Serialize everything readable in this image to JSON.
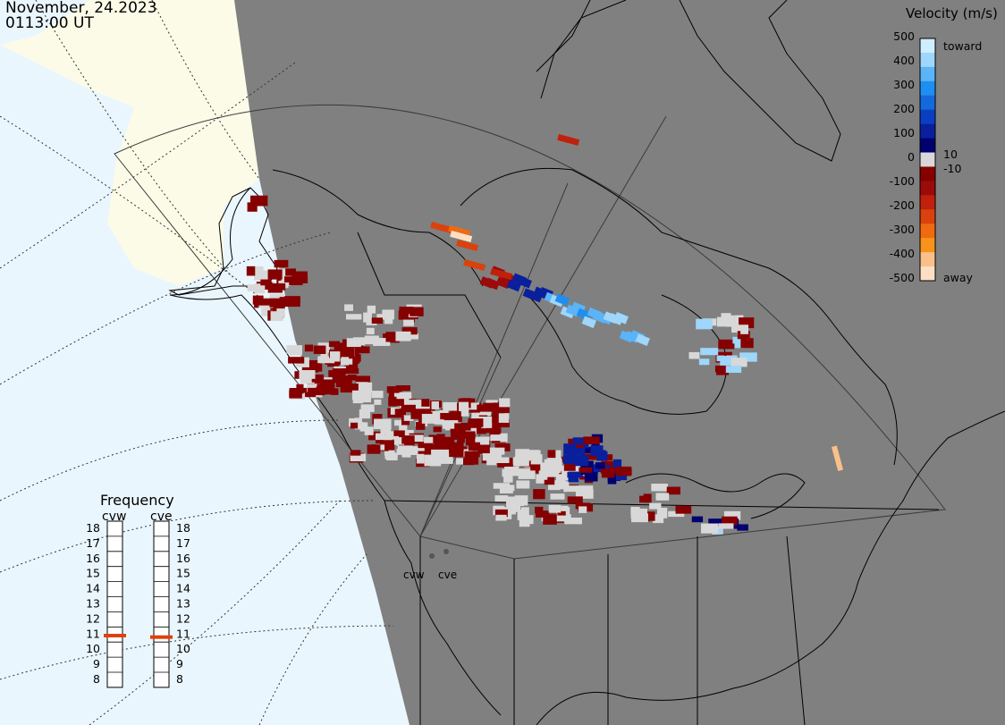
{
  "header": {
    "date": "November, 24.2023",
    "time": "0113:00 UT"
  },
  "velocity_scale": {
    "title": "Velocity (m/s)",
    "ticks": [
      "500",
      "400",
      "300",
      "200",
      "100",
      "10",
      "0",
      "-10",
      "-100",
      "-200",
      "-300",
      "-400",
      "-500"
    ],
    "toward_label": "toward",
    "away_label": "away",
    "colors": [
      "#fde0c4",
      "#f9c08a",
      "#f7921c",
      "#ef6a10",
      "#d9420c",
      "#c0210c",
      "#9c0a0a",
      "#850000",
      "#d8d8d8",
      "#00006e",
      "#0a1f9c",
      "#0a3fc4",
      "#1469dc",
      "#1e8ff0",
      "#5ab4f7",
      "#9fd6fb",
      "#cfeeff"
    ]
  },
  "frequency": {
    "title": "Frequency",
    "radars": [
      "cvw",
      "cve"
    ],
    "ticks": [
      "18",
      "17",
      "16",
      "15",
      "14",
      "13",
      "12",
      "11",
      "10",
      "9",
      "8"
    ],
    "selected_mhz": [
      10.9,
      10.8
    ],
    "marker_color": "#e0400a"
  },
  "map": {
    "radar_sites": [
      "cvw",
      "cve"
    ],
    "colors": {
      "land": "#808080",
      "night_ocean": "#eaf6fe",
      "day_land": "#fbfbe8",
      "ground_scatter": "#d8d8d8"
    }
  }
}
